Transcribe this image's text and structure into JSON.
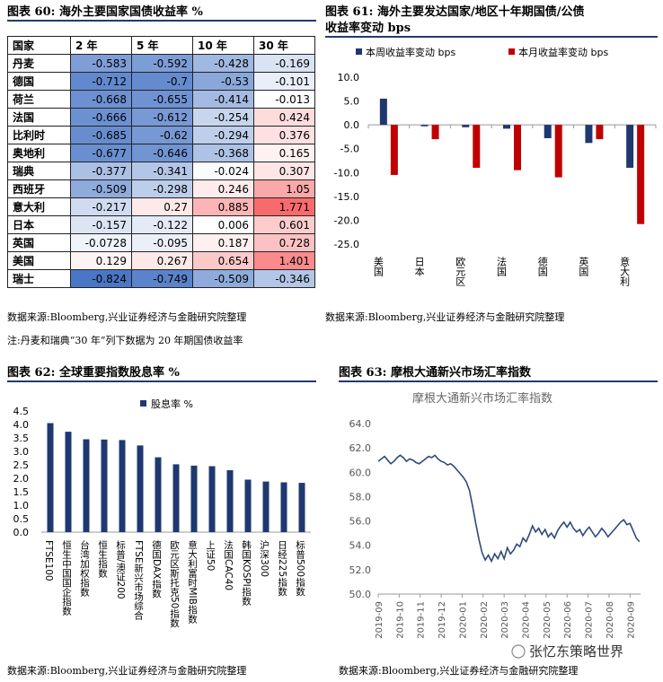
{
  "panel60": {
    "title": "图表 60: 海外主要国家国债收益率 %",
    "headers": [
      "国家",
      "2 年",
      "5 年",
      "10 年",
      "30 年"
    ],
    "rows": [
      {
        "country": "丹麦",
        "values": [
          "-0.583",
          "-0.592",
          "-0.428",
          "-0.169"
        ]
      },
      {
        "country": "德国",
        "values": [
          "-0.712",
          "-0.7",
          "-0.53",
          "-0.101"
        ]
      },
      {
        "country": "荷兰",
        "values": [
          "-0.668",
          "-0.655",
          "-0.414",
          "-0.013"
        ]
      },
      {
        "country": "法国",
        "values": [
          "-0.666",
          "-0.612",
          "-0.254",
          "0.424"
        ]
      },
      {
        "country": "比利时",
        "values": [
          "-0.685",
          "-0.62",
          "-0.294",
          "0.376"
        ]
      },
      {
        "country": "奥地利",
        "values": [
          "-0.677",
          "-0.646",
          "-0.368",
          "0.165"
        ]
      },
      {
        "country": "瑞典",
        "values": [
          "-0.377",
          "-0.341",
          "-0.024",
          "0.307"
        ]
      },
      {
        "country": "西班牙",
        "values": [
          "-0.509",
          "-0.298",
          "0.246",
          "1.05"
        ]
      },
      {
        "country": "意大利",
        "values": [
          "-0.217",
          "0.27",
          "0.885",
          "1.771"
        ]
      },
      {
        "country": "日本",
        "values": [
          "-0.157",
          "-0.122",
          "0.006",
          "0.601"
        ]
      },
      {
        "country": "英国",
        "values": [
          "-0.0728",
          "-0.095",
          "0.187",
          "0.728"
        ]
      },
      {
        "country": "美国",
        "values": [
          "0.129",
          "0.267",
          "0.654",
          "1.401"
        ]
      },
      {
        "country": "瑞士",
        "values": [
          "-0.824",
          "-0.749",
          "-0.509",
          "-0.346"
        ]
      }
    ],
    "source": "数据来源:Bloomberg,兴业证券经济与金融研究院整理",
    "note": "注:丹麦和瑞典“30 年”列下数据为 20 年期国债收益率"
  },
  "panel61": {
    "title_line1": "图表 61: 海外主要发达国家/地区十年期国债/公债",
    "title_line2": "收益率变动 bps",
    "source": "数据来源:Bloomberg,兴业证券经济与金融研究院整理"
  },
  "panel62": {
    "title": "图表 62: 全球重要指数股息率 %",
    "source": "数据来源:Bloomberg,兴业证券经济与金融研究院整理"
  },
  "panel63": {
    "title": "图表 63: 摩根大通新兴市场汇率指数",
    "source": "数据来源:Bloomberg,兴业证券经济与金融研究院整理",
    "watermark": "张忆东策略世界"
  },
  "colors": {
    "blue_series": "#1f3870",
    "red_series": "#c00000",
    "line_series": "#2e4a7a",
    "rule": "#1f3b73"
  },
  "chart_data": [
    {
      "type": "bar",
      "title": "",
      "categories": [
        "美国",
        "日本",
        "欧元区",
        "法国",
        "德国",
        "英国",
        "意大利"
      ],
      "series": [
        {
          "name": "本周收益率变动 bps",
          "values": [
            5.5,
            -0.3,
            -0.5,
            -0.8,
            -2.8,
            -3.8,
            -9.0
          ]
        },
        {
          "name": "本月收益率变动 bps",
          "values": [
            -10.5,
            -3.0,
            -9.0,
            -9.5,
            -11.0,
            -3.0,
            -20.8
          ]
        }
      ],
      "yticks": [
        "10.0",
        "5.0",
        "0.0",
        "-5.0",
        "-10.0",
        "-15.0",
        "-20.0",
        "-25.0"
      ],
      "ylim": [
        -25,
        10
      ],
      "legend": "top"
    },
    {
      "type": "bar",
      "title": "",
      "categories": [
        "FTSE100",
        "恒生中国国企指数",
        "台湾加权指数",
        "恒生指数",
        "标普/澳证200",
        "FTSE新兴市场综合",
        "德国DAX指数",
        "欧元区斯托克50指数",
        "意大利富时MIB指数",
        "上证50",
        "法国CAC40",
        "韩国KOSPI指数",
        "沪深300",
        "日经225指数",
        "标普500指数"
      ],
      "series": [
        {
          "name": "股息率 %",
          "values": [
            4.05,
            3.73,
            3.45,
            3.44,
            3.42,
            3.22,
            2.78,
            2.52,
            2.47,
            2.45,
            2.3,
            1.95,
            1.88,
            1.85,
            1.83
          ]
        }
      ],
      "yticks": [
        "4.5",
        "4.0",
        "3.5",
        "3.0",
        "2.5",
        "2.0",
        "1.5",
        "1.0",
        "0.5",
        "0.0"
      ],
      "ylim": [
        0,
        4.5
      ],
      "legend": "top"
    },
    {
      "type": "line",
      "title": "摩根大通新兴市场汇率指数",
      "xticks": [
        "2019-09",
        "2019-10",
        "2019-11",
        "2019-12",
        "2020-01",
        "2020-02",
        "2020-03",
        "2020-04",
        "2020-05",
        "2020-06",
        "2020-07",
        "2020-08",
        "2020-09"
      ],
      "yticks": [
        "64.0",
        "62.0",
        "60.0",
        "58.0",
        "56.0",
        "54.0",
        "52.0",
        "50.0"
      ],
      "ylim": [
        50,
        64
      ],
      "x_months": [
        0,
        0.15,
        0.3,
        0.45,
        0.6,
        0.75,
        0.9,
        1.05,
        1.2,
        1.35,
        1.5,
        1.65,
        1.8,
        1.95,
        2.1,
        2.25,
        2.4,
        2.55,
        2.7,
        2.85,
        3.0,
        3.15,
        3.3,
        3.45,
        3.6,
        3.75,
        3.9,
        4.05,
        4.2,
        4.35,
        4.5,
        4.65,
        4.8,
        4.95,
        5.1,
        5.25,
        5.4,
        5.55,
        5.7,
        5.85,
        6.0,
        6.15,
        6.3,
        6.45,
        6.6,
        6.75,
        6.9,
        7.05,
        7.2,
        7.35,
        7.5,
        7.65,
        7.8,
        7.95,
        8.1,
        8.25,
        8.4,
        8.55,
        8.7,
        8.85,
        9.0,
        9.15,
        9.3,
        9.45,
        9.6,
        9.75,
        9.9,
        10.05,
        10.2,
        10.35,
        10.5,
        10.65,
        10.8,
        10.95,
        11.1,
        11.25,
        11.4,
        11.55,
        11.7,
        11.85,
        12.0,
        12.15,
        12.3,
        12.45
      ],
      "values": [
        60.9,
        61.1,
        61.3,
        61.0,
        60.7,
        60.9,
        61.2,
        61.4,
        61.2,
        60.9,
        61.1,
        61.0,
        60.8,
        60.7,
        60.9,
        61.1,
        61.3,
        61.2,
        61.4,
        61.1,
        60.9,
        60.8,
        60.6,
        60.7,
        60.5,
        60.2,
        59.9,
        59.6,
        59.2,
        58.5,
        57.2,
        55.8,
        54.5,
        53.4,
        52.8,
        53.2,
        52.7,
        53.3,
        52.9,
        53.5,
        52.9,
        53.8,
        53.3,
        53.6,
        54.1,
        53.9,
        54.6,
        54.3,
        54.9,
        55.6,
        55.1,
        55.4,
        54.9,
        55.3,
        54.7,
        55.0,
        54.6,
        55.2,
        55.6,
        55.9,
        55.5,
        55.9,
        55.4,
        55.1,
        55.3,
        54.8,
        55.2,
        55.5,
        55.1,
        54.7,
        55.0,
        55.4,
        55.1,
        54.7,
        55.0,
        55.3,
        55.6,
        55.9,
        56.1,
        55.7,
        55.8,
        55.2,
        54.6,
        54.3
      ]
    }
  ]
}
